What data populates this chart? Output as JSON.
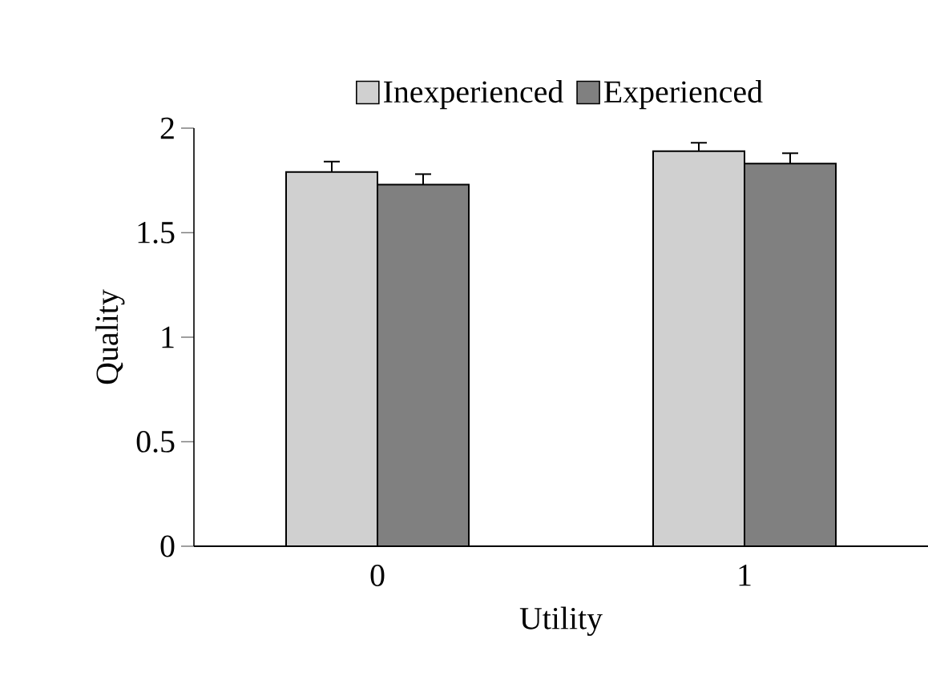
{
  "chart_data": {
    "type": "bar",
    "xlabel": "Utility",
    "ylabel": "Quality",
    "categories": [
      "0",
      "1"
    ],
    "series": [
      {
        "name": "Inexperienced",
        "color": "#d0d0d0",
        "values": [
          1.79,
          1.89
        ],
        "errors": [
          0.05,
          0.04
        ]
      },
      {
        "name": "Experienced",
        "color": "#808080",
        "values": [
          1.73,
          1.83
        ],
        "errors": [
          0.05,
          0.05
        ]
      }
    ],
    "ylim": [
      0,
      2
    ],
    "yticks": [
      0,
      0.5,
      1,
      1.5,
      2
    ],
    "legend": "top",
    "grid": false
  }
}
